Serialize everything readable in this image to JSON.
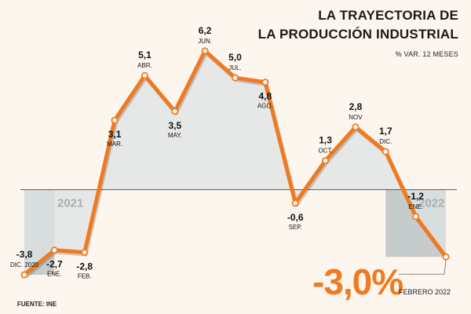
{
  "header": {
    "title_line1": "LA TRAYECTORIA DE",
    "title_line2": "LA PRODUCCIÓN INDUSTRIAL",
    "subtitle": "% VAR. 12 MESES"
  },
  "footer": {
    "source": "FUENTE: INE"
  },
  "callout": {
    "value": "-3,0%",
    "label": "FEBRERO 2022"
  },
  "colors": {
    "line": "#f07a20",
    "area": "#dde3e4",
    "highlight": "#c6cbcc",
    "zero_line": "#555555"
  },
  "chart_data": {
    "type": "line",
    "year_labels": [
      "2021",
      "2022"
    ],
    "series": [
      {
        "values": [
          -3.8,
          -2.7,
          -2.8,
          3.1,
          5.1,
          3.5,
          6.2,
          5.0,
          4.8,
          -0.6,
          1.3,
          2.8,
          1.7,
          -1.2,
          -3.0
        ]
      }
    ],
    "value_labels": [
      "-3,8",
      "-2,7",
      "-2,8",
      "3,1",
      "5,1",
      "3,5",
      "6,2",
      "5,0",
      "4,8",
      "-0,6",
      "1,3",
      "2,8",
      "1,7",
      "-1,2",
      ""
    ],
    "month_labels": [
      "DIC. 2020",
      "ENE.",
      "FEB.",
      "MAR.",
      "ABR.",
      "MAY.",
      "JUN.",
      "JUL.",
      "AGO.",
      "SEP.",
      "OCT.",
      "NOV",
      "DIC.",
      "ENE.",
      ""
    ],
    "label_positions": [
      "above",
      "below",
      "below",
      "below",
      "above",
      "below",
      "above",
      "above",
      "below",
      "below",
      "above",
      "above",
      "above",
      "above",
      "none"
    ],
    "ylim": [
      -4.5,
      7
    ],
    "zero_line": true,
    "grid": false
  }
}
